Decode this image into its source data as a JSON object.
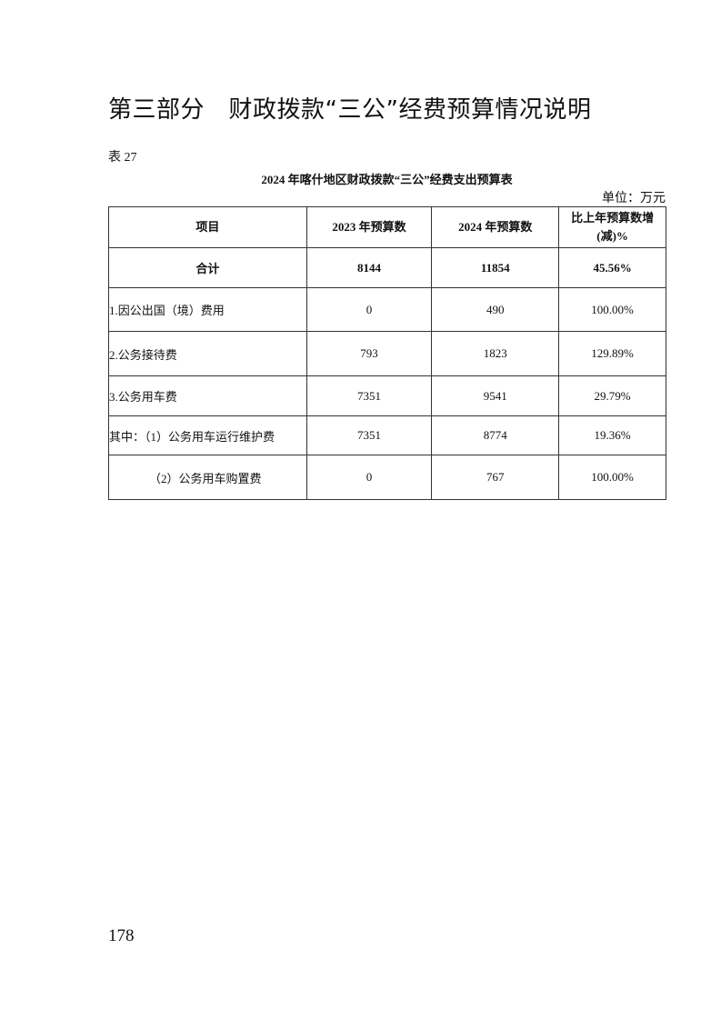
{
  "title": "第三部分　财政拨款“三公”经费预算情况说明",
  "table_number": "表 27",
  "table_caption": "2024 年喀什地区财政拨款“三公”经费支出预算表",
  "unit": "单位：万元",
  "table": {
    "headers": [
      "项目",
      "2023 年预算数",
      "2024 年预算数",
      "比上年预算数增(减)%"
    ],
    "rows": [
      [
        "合计",
        "8144",
        "11854",
        "45.56%"
      ],
      [
        "1.因公出国（境）费用",
        "0",
        "490",
        "100.00%"
      ],
      [
        "2.公务接待费",
        "793",
        "1823",
        "129.89%"
      ],
      [
        "3.公务用车费",
        "7351",
        "9541",
        "29.79%"
      ],
      [
        "其中：（1）公务用车运行维护费",
        "7351",
        "8774",
        "19.36%"
      ],
      [
        "（2）公务用车购置费",
        "0",
        "767",
        "100.00%"
      ]
    ]
  },
  "page_number": "178"
}
